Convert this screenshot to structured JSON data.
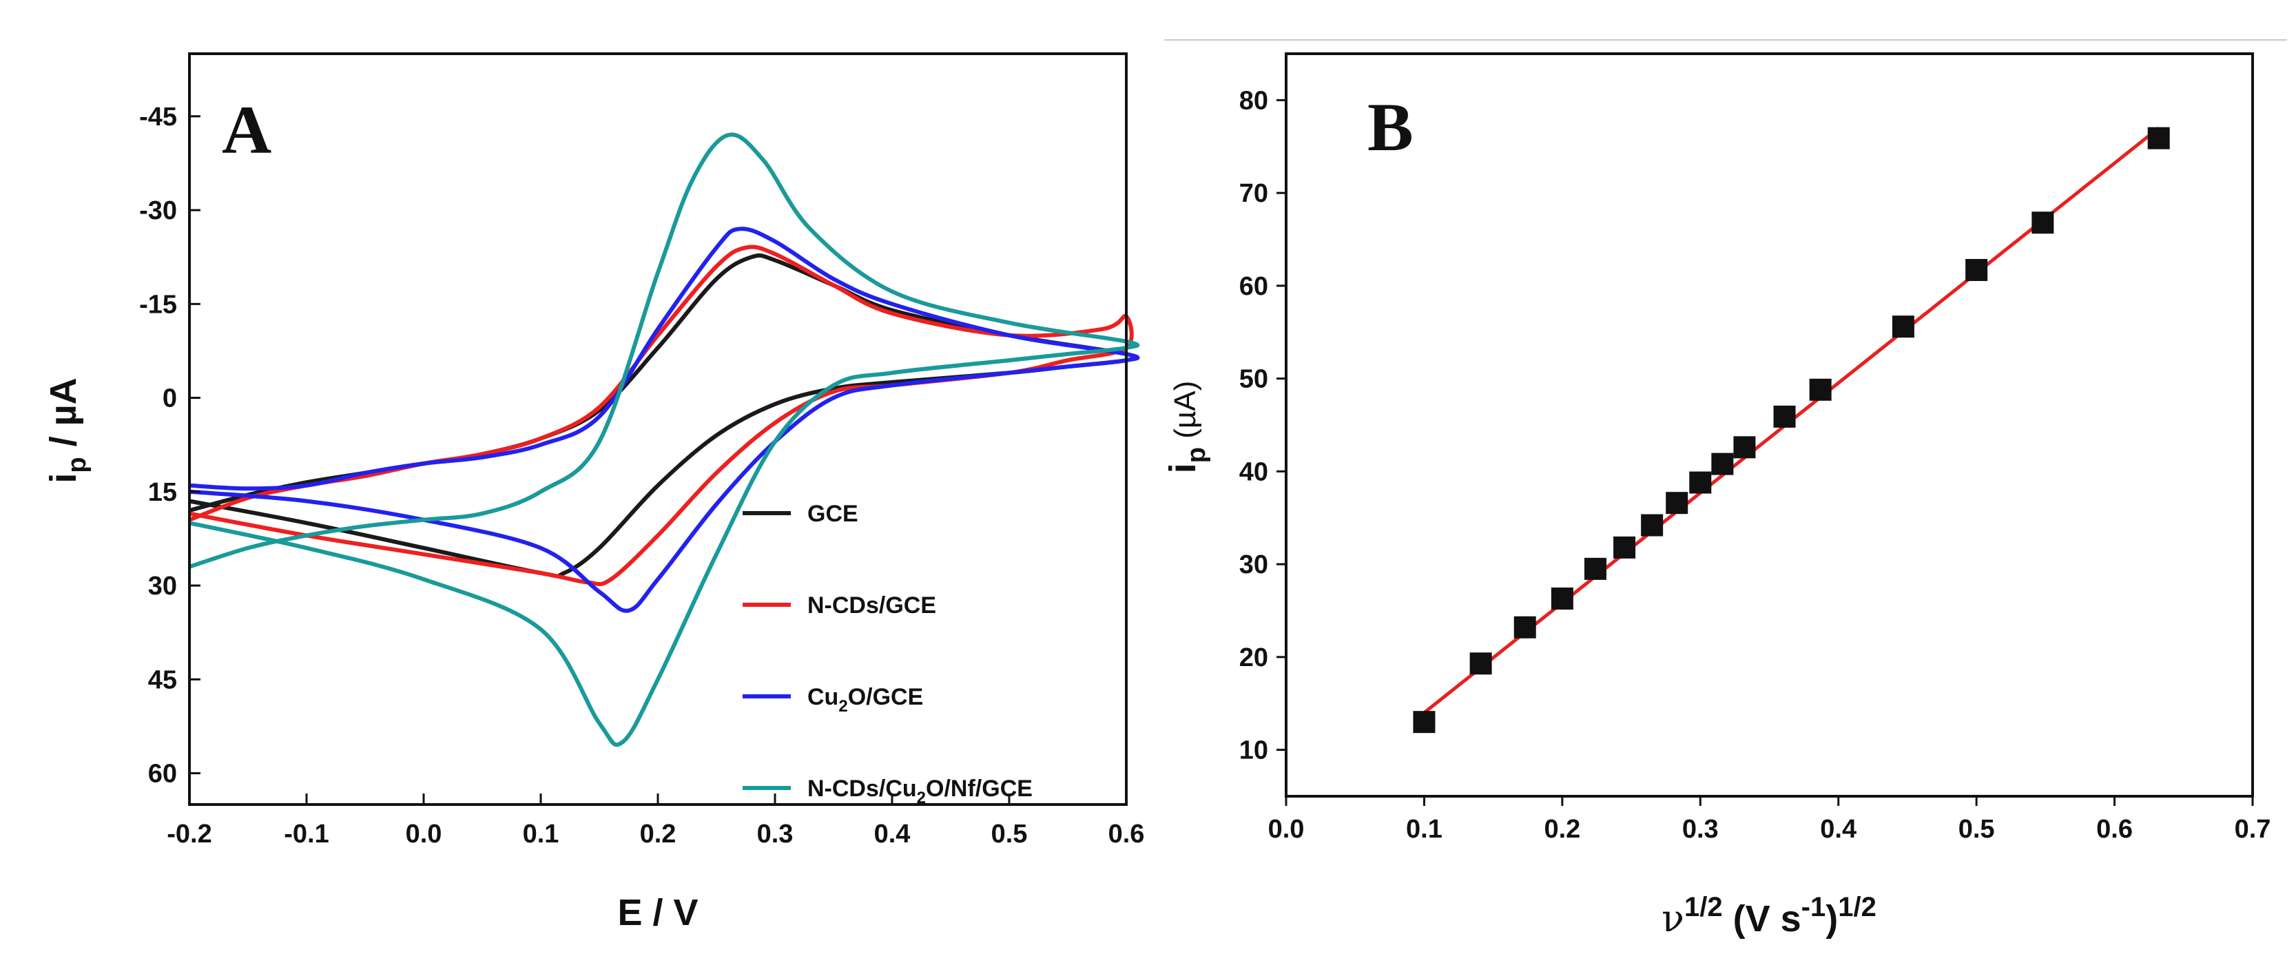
{
  "chart_data": [
    {
      "type": "line",
      "panel": "A",
      "xlabel": "E / V",
      "ylabel_main": "i",
      "ylabel_sub": "p",
      "ylabel_unit": " / µA",
      "xlim": [
        -0.2,
        0.6
      ],
      "ylim": [
        -55,
        65
      ],
      "x_ticks": [
        -0.2,
        -0.1,
        0.0,
        0.1,
        0.2,
        0.3,
        0.4,
        0.5,
        0.6
      ],
      "x_tick_labels": [
        "-0.2",
        "-0.1",
        "0.0",
        "0.1",
        "0.2",
        "0.3",
        "0.4",
        "0.5",
        "0.6"
      ],
      "y_ticks": [
        -45,
        -30,
        -15,
        0,
        15,
        30,
        45,
        60
      ],
      "y_tick_labels": [
        "-45",
        "-30",
        "-15",
        "0",
        "15",
        "30",
        "45",
        "60"
      ],
      "y_axis_inverted": true,
      "legend_position": "lower-right",
      "series": [
        {
          "name": "GCE",
          "legend_parts": [
            {
              "t": "GCE",
              "sub": false
            }
          ],
          "color": "#1a1a1a",
          "points": [
            [
              -0.2,
              18
            ],
            [
              -0.15,
              15.5
            ],
            [
              -0.1,
              13.5
            ],
            [
              -0.05,
              12
            ],
            [
              0.0,
              10.5
            ],
            [
              0.05,
              9
            ],
            [
              0.1,
              6.5
            ],
            [
              0.15,
              2
            ],
            [
              0.2,
              -8
            ],
            [
              0.25,
              -19
            ],
            [
              0.28,
              -22.5
            ],
            [
              0.3,
              -22
            ],
            [
              0.35,
              -18
            ],
            [
              0.4,
              -14
            ],
            [
              0.5,
              -10
            ],
            [
              0.6,
              -7
            ],
            [
              0.6,
              -6
            ],
            [
              0.55,
              -5
            ],
            [
              0.5,
              -4
            ],
            [
              0.4,
              -2.5
            ],
            [
              0.35,
              -1.5
            ],
            [
              0.3,
              1
            ],
            [
              0.25,
              6
            ],
            [
              0.2,
              14
            ],
            [
              0.15,
              24
            ],
            [
              0.12,
              28
            ],
            [
              0.1,
              28
            ],
            [
              0.0,
              24
            ],
            [
              -0.1,
              20
            ],
            [
              -0.2,
              16.5
            ]
          ]
        },
        {
          "name": "N-CDs/GCE",
          "legend_parts": [
            {
              "t": "N-CDs/GCE",
              "sub": false
            }
          ],
          "color": "#ee2020",
          "points": [
            [
              -0.2,
              19.5
            ],
            [
              -0.15,
              16
            ],
            [
              -0.1,
              14
            ],
            [
              -0.05,
              12.5
            ],
            [
              0.0,
              10.5
            ],
            [
              0.05,
              9
            ],
            [
              0.1,
              6.5
            ],
            [
              0.15,
              1.5
            ],
            [
              0.2,
              -10
            ],
            [
              0.25,
              -21
            ],
            [
              0.275,
              -24
            ],
            [
              0.3,
              -23
            ],
            [
              0.35,
              -18
            ],
            [
              0.4,
              -13.5
            ],
            [
              0.5,
              -10
            ],
            [
              0.58,
              -11
            ],
            [
              0.6,
              -13
            ],
            [
              0.6,
              -8
            ],
            [
              0.55,
              -6
            ],
            [
              0.5,
              -4
            ],
            [
              0.4,
              -2
            ],
            [
              0.35,
              -1
            ],
            [
              0.3,
              4
            ],
            [
              0.25,
              12
            ],
            [
              0.2,
              22
            ],
            [
              0.16,
              29
            ],
            [
              0.14,
              29.5
            ],
            [
              0.1,
              28
            ],
            [
              0.0,
              25
            ],
            [
              -0.1,
              22
            ],
            [
              -0.2,
              18.5
            ]
          ]
        },
        {
          "name": "Cu2O/GCE",
          "legend_parts": [
            {
              "t": "Cu",
              "sub": false
            },
            {
              "t": "2",
              "sub": true
            },
            {
              "t": "O/GCE",
              "sub": false
            }
          ],
          "color": "#2222ee",
          "points": [
            [
              -0.2,
              14
            ],
            [
              -0.15,
              14.5
            ],
            [
              -0.1,
              14
            ],
            [
              -0.05,
              12
            ],
            [
              0.0,
              10.5
            ],
            [
              0.05,
              9.5
            ],
            [
              0.1,
              7.5
            ],
            [
              0.15,
              3
            ],
            [
              0.2,
              -11
            ],
            [
              0.25,
              -24
            ],
            [
              0.27,
              -27
            ],
            [
              0.3,
              -25
            ],
            [
              0.35,
              -19
            ],
            [
              0.4,
              -15
            ],
            [
              0.5,
              -10
            ],
            [
              0.6,
              -7
            ],
            [
              0.6,
              -6
            ],
            [
              0.55,
              -5
            ],
            [
              0.5,
              -4
            ],
            [
              0.4,
              -2
            ],
            [
              0.35,
              0
            ],
            [
              0.3,
              7
            ],
            [
              0.25,
              17
            ],
            [
              0.2,
              29
            ],
            [
              0.175,
              34
            ],
            [
              0.15,
              31
            ],
            [
              0.1,
              24
            ],
            [
              0.0,
              19.5
            ],
            [
              -0.1,
              16.5
            ],
            [
              -0.2,
              15
            ]
          ]
        },
        {
          "name": "N-CDs/Cu2O/Nf/GCE",
          "legend_parts": [
            {
              "t": "N-CDs/Cu",
              "sub": false
            },
            {
              "t": "2",
              "sub": true
            },
            {
              "t": "O/Nf/GCE",
              "sub": false
            }
          ],
          "color": "#1a9a9a",
          "points": [
            [
              -0.2,
              27
            ],
            [
              -0.15,
              24
            ],
            [
              -0.1,
              22
            ],
            [
              -0.05,
              20.5
            ],
            [
              0.0,
              19.5
            ],
            [
              0.05,
              18.5
            ],
            [
              0.1,
              15
            ],
            [
              0.15,
              7
            ],
            [
              0.2,
              -20
            ],
            [
              0.23,
              -35
            ],
            [
              0.26,
              -42
            ],
            [
              0.29,
              -38
            ],
            [
              0.33,
              -27
            ],
            [
              0.4,
              -17
            ],
            [
              0.5,
              -12
            ],
            [
              0.6,
              -9
            ],
            [
              0.6,
              -8
            ],
            [
              0.55,
              -7
            ],
            [
              0.5,
              -6
            ],
            [
              0.4,
              -4
            ],
            [
              0.35,
              -2
            ],
            [
              0.3,
              7
            ],
            [
              0.25,
              25
            ],
            [
              0.2,
              45
            ],
            [
              0.17,
              55
            ],
            [
              0.15,
              52
            ],
            [
              0.1,
              37
            ],
            [
              0.0,
              29
            ],
            [
              -0.1,
              24
            ],
            [
              -0.2,
              20
            ]
          ]
        }
      ]
    },
    {
      "type": "scatter",
      "panel": "B",
      "xlabel_parts": [
        {
          "t": "ν",
          "sup": false
        },
        {
          "t": "1/2",
          "sup": true
        },
        {
          "t": " (V s",
          "sup": false
        },
        {
          "t": "-1",
          "sup": true
        },
        {
          "t": ")",
          "sup": false
        },
        {
          "t": "1/2",
          "sup": true
        }
      ],
      "ylabel_main": "i",
      "ylabel_sub": "p",
      "ylabel_unit": " (µA)",
      "xlim": [
        0.0,
        0.7
      ],
      "ylim": [
        5,
        85
      ],
      "x_ticks": [
        0.0,
        0.1,
        0.2,
        0.3,
        0.4,
        0.5,
        0.6,
        0.7
      ],
      "x_tick_labels": [
        "0.0",
        "0.1",
        "0.2",
        "0.3",
        "0.4",
        "0.5",
        "0.6",
        "0.7"
      ],
      "y_ticks": [
        10,
        20,
        30,
        40,
        50,
        60,
        70,
        80
      ],
      "y_tick_labels": [
        "10",
        "20",
        "30",
        "40",
        "50",
        "60",
        "70",
        "80"
      ],
      "marker_color": "#111111",
      "fit_color": "#e82020",
      "fit_line": {
        "x": [
          0.1,
          0.632
        ],
        "y": [
          14,
          77
        ]
      },
      "x": [
        0.1,
        0.141,
        0.173,
        0.2,
        0.224,
        0.245,
        0.265,
        0.283,
        0.3,
        0.316,
        0.332,
        0.361,
        0.387,
        0.447,
        0.5,
        0.548,
        0.632
      ],
      "y": [
        13,
        19.3,
        23.2,
        26.3,
        29.5,
        31.8,
        34.2,
        36.6,
        38.8,
        40.8,
        42.6,
        45.9,
        48.8,
        55.6,
        61.7,
        66.8,
        75.9
      ]
    }
  ]
}
